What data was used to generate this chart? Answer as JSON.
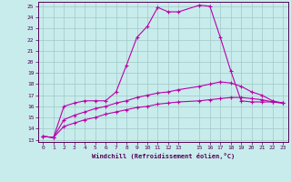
{
  "xlabel": "Windchill (Refroidissement éolien,°C)",
  "background_color": "#c8ecec",
  "grid_color": "#a0c8c8",
  "line_color": "#bb00aa",
  "xlim": [
    -0.5,
    23.5
  ],
  "ylim": [
    12.8,
    25.4
  ],
  "x_ticks": [
    0,
    1,
    2,
    3,
    4,
    5,
    6,
    7,
    8,
    9,
    10,
    11,
    12,
    13,
    15,
    16,
    17,
    18,
    19,
    20,
    21,
    22,
    23
  ],
  "y_ticks": [
    13,
    14,
    15,
    16,
    17,
    18,
    19,
    20,
    21,
    22,
    23,
    24,
    25
  ],
  "curve1_x": [
    0,
    1,
    2,
    3,
    4,
    5,
    6,
    7,
    8,
    9,
    10,
    11,
    12,
    13,
    15,
    16,
    17,
    18,
    19,
    20,
    21,
    22,
    23
  ],
  "curve1_y": [
    13.3,
    13.2,
    16.0,
    16.3,
    16.5,
    16.5,
    16.5,
    17.3,
    19.7,
    22.2,
    23.2,
    24.9,
    24.5,
    24.5,
    25.1,
    25.0,
    22.2,
    19.2,
    16.5,
    16.4,
    16.4,
    16.4,
    16.3
  ],
  "curve2_x": [
    0,
    1,
    2,
    3,
    4,
    5,
    6,
    7,
    8,
    9,
    10,
    11,
    12,
    13,
    15,
    16,
    17,
    18,
    19,
    20,
    21,
    22,
    23
  ],
  "curve2_y": [
    13.3,
    13.2,
    14.8,
    15.2,
    15.5,
    15.8,
    16.0,
    16.3,
    16.5,
    16.8,
    17.0,
    17.2,
    17.3,
    17.5,
    17.8,
    18.0,
    18.2,
    18.1,
    17.8,
    17.3,
    17.0,
    16.5,
    16.3
  ],
  "curve3_x": [
    0,
    1,
    2,
    3,
    4,
    5,
    6,
    7,
    8,
    9,
    10,
    11,
    12,
    13,
    15,
    16,
    17,
    18,
    19,
    20,
    21,
    22,
    23
  ],
  "curve3_y": [
    13.3,
    13.2,
    14.2,
    14.5,
    14.8,
    15.0,
    15.3,
    15.5,
    15.7,
    15.9,
    16.0,
    16.2,
    16.3,
    16.4,
    16.5,
    16.6,
    16.7,
    16.8,
    16.8,
    16.7,
    16.6,
    16.4,
    16.3
  ]
}
